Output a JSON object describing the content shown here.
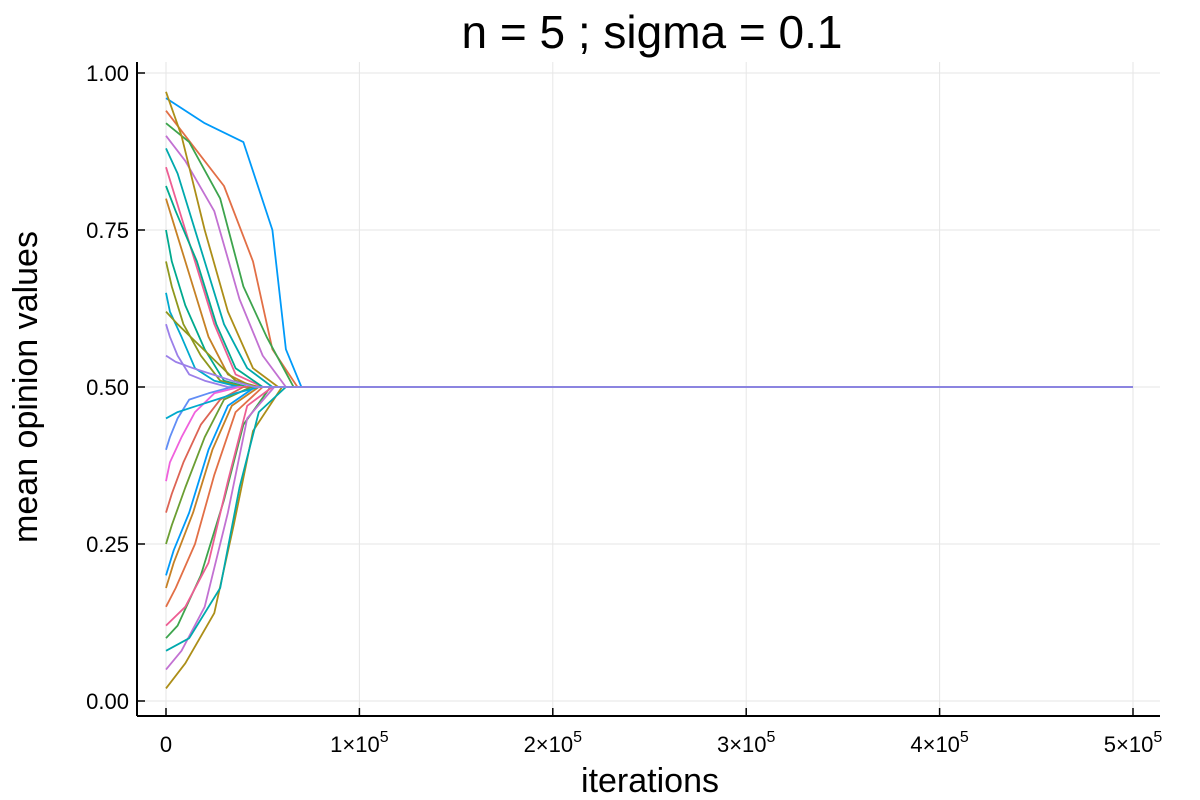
{
  "chart_data": {
    "type": "line",
    "title": "n = 5 ; sigma = 0.1",
    "xlabel": "iterations",
    "ylabel": "mean opinion values",
    "xlim": [
      0,
      500000
    ],
    "ylim": [
      0,
      1
    ],
    "grid": true,
    "legend": "none",
    "x_ticks": [
      {
        "value": 0,
        "mant": "0",
        "exp": ""
      },
      {
        "value": 100000,
        "mant": "1×10",
        "exp": "5"
      },
      {
        "value": 200000,
        "mant": "2×10",
        "exp": "5"
      },
      {
        "value": 300000,
        "mant": "3×10",
        "exp": "5"
      },
      {
        "value": 400000,
        "mant": "4×10",
        "exp": "5"
      },
      {
        "value": 500000,
        "mant": "5×10",
        "exp": "5"
      }
    ],
    "y_ticks": [
      {
        "value": 0.0,
        "label": "0.00"
      },
      {
        "value": 0.25,
        "label": "0.25"
      },
      {
        "value": 0.5,
        "label": "0.50"
      },
      {
        "value": 0.75,
        "label": "0.75"
      },
      {
        "value": 1.0,
        "label": "1.00"
      }
    ],
    "palette": [
      "#009af9",
      "#e26f46",
      "#3da44d",
      "#c271d2",
      "#ac8e18",
      "#00a9ad",
      "#ed5e93",
      "#c68125",
      "#00a98e",
      "#8e971d",
      "#00a9cd",
      "#9b7fe9",
      "#618df6",
      "#f061dd",
      "#dd6454",
      "#6b9e32"
    ],
    "series": [
      {
        "x": [
          0,
          20000,
          40000,
          55000,
          62000,
          70000,
          500000
        ],
        "y": [
          0.96,
          0.92,
          0.89,
          0.75,
          0.56,
          0.5,
          0.5
        ]
      },
      {
        "x": [
          0,
          15000,
          30000,
          45000,
          55000,
          68000,
          500000
        ],
        "y": [
          0.94,
          0.88,
          0.82,
          0.7,
          0.56,
          0.5,
          0.5
        ]
      },
      {
        "x": [
          0,
          12000,
          28000,
          40000,
          52000,
          66000,
          500000
        ],
        "y": [
          0.92,
          0.89,
          0.8,
          0.66,
          0.58,
          0.5,
          0.5
        ]
      },
      {
        "x": [
          0,
          10000,
          25000,
          38000,
          50000,
          62000,
          500000
        ],
        "y": [
          0.9,
          0.86,
          0.78,
          0.64,
          0.55,
          0.5,
          0.5
        ]
      },
      {
        "x": [
          0,
          8000,
          20000,
          32000,
          45000,
          58000,
          500000
        ],
        "y": [
          0.97,
          0.9,
          0.75,
          0.62,
          0.53,
          0.5,
          0.5
        ]
      },
      {
        "x": [
          0,
          6000,
          18000,
          30000,
          42000,
          55000,
          500000
        ],
        "y": [
          0.88,
          0.84,
          0.72,
          0.6,
          0.53,
          0.5,
          0.5
        ]
      },
      {
        "x": [
          0,
          5000,
          15000,
          25000,
          36000,
          50000,
          500000
        ],
        "y": [
          0.85,
          0.8,
          0.7,
          0.6,
          0.52,
          0.5,
          0.5
        ]
      },
      {
        "x": [
          0,
          4000,
          12000,
          22000,
          32000,
          45000,
          500000
        ],
        "y": [
          0.8,
          0.76,
          0.68,
          0.58,
          0.52,
          0.5,
          0.5
        ]
      },
      {
        "x": [
          0,
          3000,
          10000,
          20000,
          30000,
          42000,
          500000
        ],
        "y": [
          0.75,
          0.7,
          0.63,
          0.56,
          0.51,
          0.5,
          0.5
        ]
      },
      {
        "x": [
          0,
          3000,
          9000,
          18000,
          28000,
          40000,
          500000
        ],
        "y": [
          0.7,
          0.66,
          0.6,
          0.55,
          0.51,
          0.5,
          0.5
        ]
      },
      {
        "x": [
          0,
          2000,
          8000,
          15000,
          25000,
          38000,
          500000
        ],
        "y": [
          0.65,
          0.62,
          0.58,
          0.53,
          0.51,
          0.5,
          0.5
        ]
      },
      {
        "x": [
          0,
          2000,
          6000,
          12000,
          20000,
          32000,
          500000
        ],
        "y": [
          0.6,
          0.58,
          0.55,
          0.52,
          0.51,
          0.5,
          0.5
        ]
      },
      {
        "x": [
          0,
          2000,
          6000,
          12000,
          22000,
          34000,
          500000
        ],
        "y": [
          0.4,
          0.42,
          0.45,
          0.48,
          0.49,
          0.5,
          0.5
        ]
      },
      {
        "x": [
          0,
          2000,
          8000,
          15000,
          25000,
          38000,
          500000
        ],
        "y": [
          0.35,
          0.38,
          0.42,
          0.46,
          0.49,
          0.5,
          0.5
        ]
      },
      {
        "x": [
          0,
          3000,
          9000,
          18000,
          28000,
          40000,
          500000
        ],
        "y": [
          0.3,
          0.33,
          0.38,
          0.44,
          0.48,
          0.5,
          0.5
        ]
      },
      {
        "x": [
          0,
          3000,
          10000,
          20000,
          30000,
          44000,
          500000
        ],
        "y": [
          0.25,
          0.28,
          0.34,
          0.42,
          0.48,
          0.5,
          0.5
        ]
      },
      {
        "x": [
          0,
          4000,
          12000,
          22000,
          32000,
          46000,
          500000
        ],
        "y": [
          0.2,
          0.24,
          0.3,
          0.4,
          0.47,
          0.5,
          0.5
        ]
      },
      {
        "x": [
          0,
          5000,
          15000,
          25000,
          36000,
          50000,
          500000
        ],
        "y": [
          0.15,
          0.18,
          0.25,
          0.36,
          0.46,
          0.5,
          0.5
        ]
      },
      {
        "x": [
          0,
          6000,
          18000,
          30000,
          40000,
          54000,
          500000
        ],
        "y": [
          0.1,
          0.12,
          0.2,
          0.32,
          0.44,
          0.5,
          0.5
        ]
      },
      {
        "x": [
          0,
          8000,
          20000,
          32000,
          42000,
          56000,
          500000
        ],
        "y": [
          0.05,
          0.08,
          0.15,
          0.3,
          0.45,
          0.5,
          0.5
        ]
      },
      {
        "x": [
          0,
          10000,
          25000,
          35000,
          45000,
          60000,
          500000
        ],
        "y": [
          0.02,
          0.06,
          0.14,
          0.28,
          0.43,
          0.5,
          0.5
        ]
      },
      {
        "x": [
          0,
          12000,
          28000,
          38000,
          48000,
          62000,
          500000
        ],
        "y": [
          0.08,
          0.1,
          0.18,
          0.34,
          0.46,
          0.5,
          0.5
        ]
      },
      {
        "x": [
          0,
          10000,
          22000,
          32000,
          42000,
          55000,
          500000
        ],
        "y": [
          0.12,
          0.15,
          0.22,
          0.35,
          0.47,
          0.5,
          0.5
        ]
      },
      {
        "x": [
          0,
          4000,
          14000,
          24000,
          34000,
          48000,
          500000
        ],
        "y": [
          0.18,
          0.22,
          0.3,
          0.4,
          0.47,
          0.5,
          0.5
        ]
      },
      {
        "x": [
          0,
          5000,
          16000,
          26000,
          36000,
          50000,
          500000
        ],
        "y": [
          0.82,
          0.78,
          0.7,
          0.6,
          0.53,
          0.5,
          0.5
        ]
      },
      {
        "x": [
          0,
          6000,
          16000,
          26000,
          36000,
          48000,
          500000
        ],
        "y": [
          0.62,
          0.6,
          0.57,
          0.54,
          0.51,
          0.5,
          0.5
        ]
      },
      {
        "x": [
          0,
          6000,
          16000,
          26000,
          36000,
          48000,
          500000
        ],
        "y": [
          0.45,
          0.46,
          0.47,
          0.48,
          0.49,
          0.5,
          0.5
        ]
      },
      {
        "x": [
          0,
          5000,
          14000,
          24000,
          34000,
          46000,
          500000
        ],
        "y": [
          0.55,
          0.54,
          0.53,
          0.52,
          0.51,
          0.5,
          0.5
        ]
      }
    ]
  }
}
